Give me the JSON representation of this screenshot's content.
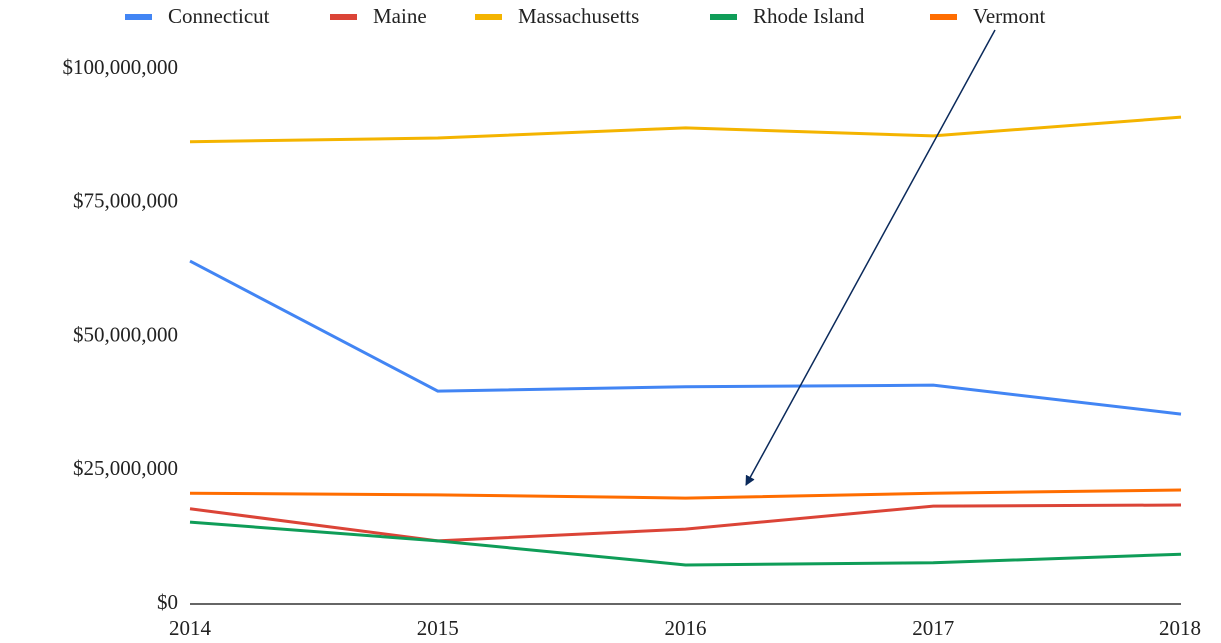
{
  "chart_data": {
    "type": "line",
    "categories": [
      "2014",
      "2015",
      "2016",
      "2017",
      "2018"
    ],
    "series": [
      {
        "name": "Connecticut",
        "color": "#4285f4",
        "values": [
          64100000,
          39800000,
          40600000,
          40900000,
          35500000
        ]
      },
      {
        "name": "Maine",
        "color": "#db4437",
        "values": [
          17800000,
          11800000,
          14000000,
          18300000,
          18500000
        ]
      },
      {
        "name": "Massachusetts",
        "color": "#f4b400",
        "values": [
          86400000,
          87100000,
          89000000,
          87500000,
          91000000
        ]
      },
      {
        "name": "Rhode Island",
        "color": "#0f9d58",
        "values": [
          15300000,
          11800000,
          7300000,
          7700000,
          9300000
        ]
      },
      {
        "name": "Vermont",
        "color": "#ff6d00",
        "values": [
          20700000,
          20400000,
          19800000,
          20700000,
          21300000
        ]
      }
    ],
    "ylim": [
      0,
      100000000
    ],
    "yticks": [
      {
        "value": 0,
        "label": "$0"
      },
      {
        "value": 25000000,
        "label": "$25,000,000"
      },
      {
        "value": 50000000,
        "label": "$50,000,000"
      },
      {
        "value": 75000000,
        "label": "$75,000,000"
      },
      {
        "value": 100000000,
        "label": "$100,000,000"
      }
    ],
    "grid": false
  }
}
